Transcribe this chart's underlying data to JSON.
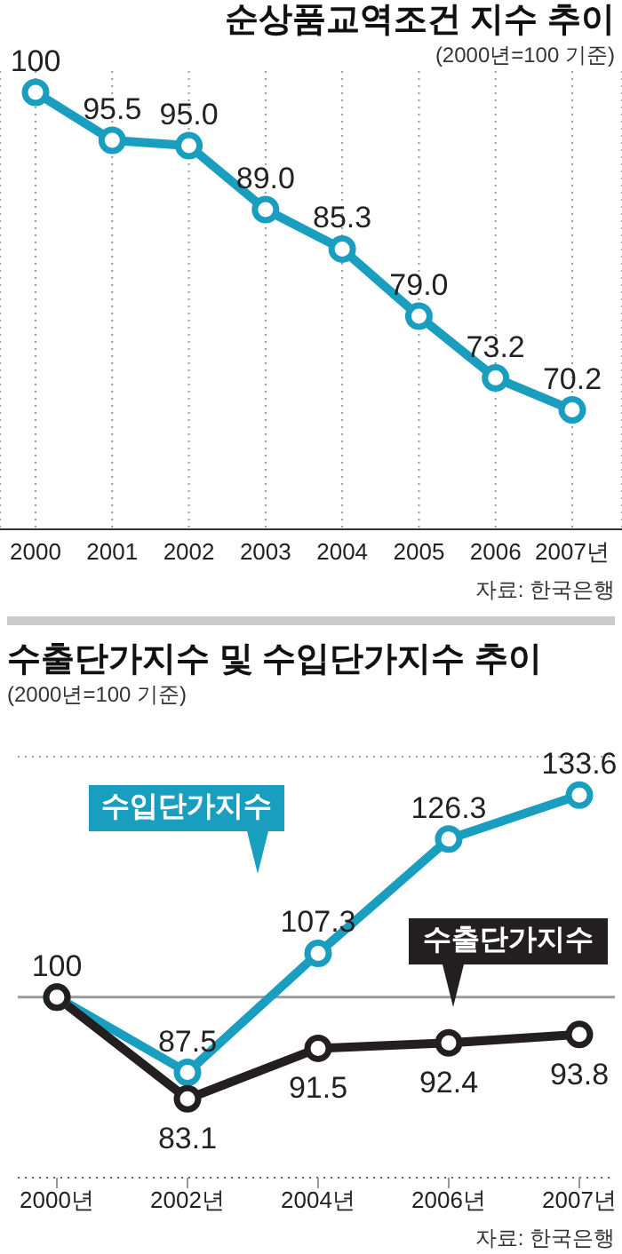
{
  "chart_data": [
    {
      "type": "line",
      "title": "순상품교역조건 지수 추이",
      "subtitle": "(2000년=100 기준)",
      "categories": [
        "2000",
        "2001",
        "2002",
        "2003",
        "2004",
        "2005",
        "2006",
        "2007년"
      ],
      "series": [
        {
          "color": "#1a9ec0",
          "values": [
            100,
            95.5,
            95.0,
            89.0,
            85.3,
            79.0,
            73.2,
            70.2
          ],
          "value_labels": [
            "100",
            "95.5",
            "95.0",
            "89.0",
            "85.3",
            "79.0",
            "73.2",
            "70.2"
          ]
        }
      ],
      "ylim": [
        59,
        102
      ],
      "tick_labels": "x",
      "grid": "x",
      "marker": "circle",
      "annotations": [
        "자료: 한국은행"
      ]
    },
    {
      "type": "line",
      "title": "수출단가지수 및 수입단가지수 추이",
      "subtitle": "(2000년=100 기준)",
      "categories": [
        "2000년",
        "2002년",
        "2004년",
        "2006년",
        "2007년"
      ],
      "series": [
        {
          "name": "수입단가지수",
          "color": "#1a9ec0",
          "values": [
            100,
            87.5,
            107.3,
            126.3,
            133.6
          ],
          "value_labels": [
            "100",
            "87.5",
            "107.3",
            "126.3",
            "133.6"
          ]
        },
        {
          "name": "수출단가지수",
          "color": "#231f20",
          "values": [
            100,
            83.1,
            91.5,
            92.4,
            93.8
          ],
          "value_labels": [
            null,
            "83.1",
            "91.5",
            "92.4",
            "93.8"
          ]
        }
      ],
      "ylim": [
        70,
        140
      ],
      "tick_labels": "x",
      "grid": "y",
      "marker": "circle",
      "ref_lines": [
        {
          "axis": "y",
          "value": 100,
          "color": "#9a9a9a"
        }
      ],
      "annotations": [
        "자료: 한국은행"
      ]
    }
  ]
}
